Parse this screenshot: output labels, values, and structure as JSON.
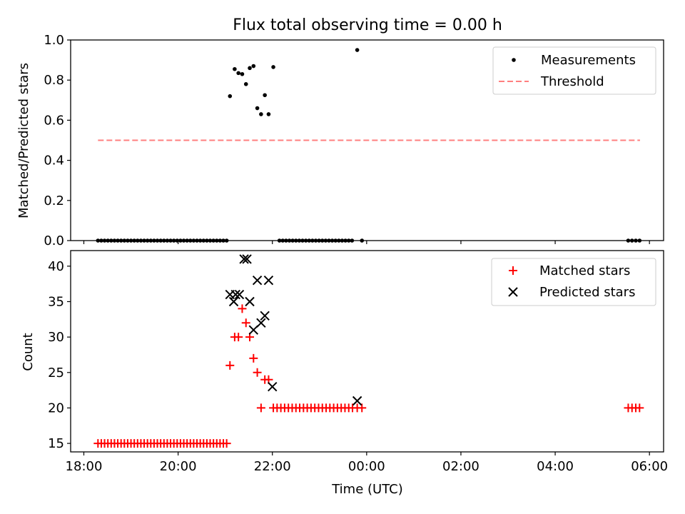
{
  "title": "Flux total observing time = 0.00 h",
  "x_axis": {
    "label": "Time (UTC)",
    "unit": "hours since 18:00 UTC",
    "range": [
      -0.28,
      12.3
    ],
    "ticks": [
      {
        "value": 0,
        "label": "18:00"
      },
      {
        "value": 2,
        "label": "20:00"
      },
      {
        "value": 4,
        "label": "22:00"
      },
      {
        "value": 6,
        "label": "00:00"
      },
      {
        "value": 8,
        "label": "02:00"
      },
      {
        "value": 10,
        "label": "04:00"
      },
      {
        "value": 12,
        "label": "06:00"
      }
    ]
  },
  "chart_data": [
    {
      "type": "scatter",
      "ylabel": "Matched/Predicted stars",
      "ylim": [
        0,
        1.0
      ],
      "yticks": [
        {
          "value": 0,
          "label": "0.0"
        },
        {
          "value": 0.2,
          "label": "0.2"
        },
        {
          "value": 0.4,
          "label": "0.4"
        },
        {
          "value": 0.6,
          "label": "0.6"
        },
        {
          "value": 0.8,
          "label": "0.8"
        },
        {
          "value": 1.0,
          "label": "1.0"
        }
      ],
      "legend_position": "upper right",
      "series": [
        {
          "name": "Measurements",
          "marker": "dot",
          "color": "#000000",
          "points": [
            [
              0.3,
              0
            ],
            [
              0.37,
              0
            ],
            [
              0.44,
              0
            ],
            [
              0.51,
              0
            ],
            [
              0.58,
              0
            ],
            [
              0.65,
              0
            ],
            [
              0.72,
              0
            ],
            [
              0.79,
              0
            ],
            [
              0.86,
              0
            ],
            [
              0.93,
              0
            ],
            [
              1.0,
              0
            ],
            [
              1.07,
              0
            ],
            [
              1.14,
              0
            ],
            [
              1.21,
              0
            ],
            [
              1.28,
              0
            ],
            [
              1.35,
              0
            ],
            [
              1.42,
              0
            ],
            [
              1.49,
              0
            ],
            [
              1.56,
              0
            ],
            [
              1.63,
              0
            ],
            [
              1.7,
              0
            ],
            [
              1.77,
              0
            ],
            [
              1.84,
              0
            ],
            [
              1.91,
              0
            ],
            [
              1.98,
              0
            ],
            [
              2.05,
              0
            ],
            [
              2.12,
              0
            ],
            [
              2.19,
              0
            ],
            [
              2.26,
              0
            ],
            [
              2.33,
              0
            ],
            [
              2.4,
              0
            ],
            [
              2.47,
              0
            ],
            [
              2.54,
              0
            ],
            [
              2.61,
              0
            ],
            [
              2.68,
              0
            ],
            [
              2.75,
              0
            ],
            [
              2.82,
              0
            ],
            [
              2.89,
              0
            ],
            [
              2.96,
              0
            ],
            [
              3.03,
              0
            ],
            [
              3.1,
              0.72
            ],
            [
              3.2,
              0.855
            ],
            [
              3.28,
              0.835
            ],
            [
              3.36,
              0.83
            ],
            [
              3.44,
              0.78
            ],
            [
              3.52,
              0.86
            ],
            [
              3.6,
              0.87
            ],
            [
              3.68,
              0.66
            ],
            [
              3.76,
              0.63
            ],
            [
              3.84,
              0.725
            ],
            [
              3.92,
              0.63
            ],
            [
              4.02,
              0.865
            ],
            [
              4.15,
              0
            ],
            [
              4.22,
              0
            ],
            [
              4.29,
              0
            ],
            [
              4.36,
              0
            ],
            [
              4.43,
              0
            ],
            [
              4.5,
              0
            ],
            [
              4.57,
              0
            ],
            [
              4.64,
              0
            ],
            [
              4.71,
              0
            ],
            [
              4.78,
              0
            ],
            [
              4.85,
              0
            ],
            [
              4.92,
              0
            ],
            [
              4.99,
              0
            ],
            [
              5.06,
              0
            ],
            [
              5.13,
              0
            ],
            [
              5.2,
              0
            ],
            [
              5.27,
              0
            ],
            [
              5.34,
              0
            ],
            [
              5.41,
              0
            ],
            [
              5.48,
              0
            ],
            [
              5.55,
              0
            ],
            [
              5.62,
              0
            ],
            [
              5.69,
              0
            ],
            [
              5.8,
              0.95
            ],
            [
              5.9,
              0
            ],
            [
              11.55,
              0
            ],
            [
              11.63,
              0
            ],
            [
              11.71,
              0
            ],
            [
              11.79,
              0
            ]
          ]
        },
        {
          "name": "Threshold",
          "style": "dashed",
          "color": "#ff7f7f",
          "x": [
            0.3,
            11.8
          ],
          "y": [
            0.5,
            0.5
          ]
        }
      ]
    },
    {
      "type": "scatter",
      "ylabel": "Count",
      "ylim": [
        13.8,
        42.2
      ],
      "yticks": [
        {
          "value": 15,
          "label": "15"
        },
        {
          "value": 20,
          "label": "20"
        },
        {
          "value": 25,
          "label": "25"
        },
        {
          "value": 30,
          "label": "30"
        },
        {
          "value": 35,
          "label": "35"
        },
        {
          "value": 40,
          "label": "40"
        }
      ],
      "legend_position": "upper right",
      "series": [
        {
          "name": "Matched stars",
          "marker": "plus",
          "color": "#ff0000",
          "points": [
            [
              0.3,
              15
            ],
            [
              0.37,
              15
            ],
            [
              0.44,
              15
            ],
            [
              0.51,
              15
            ],
            [
              0.58,
              15
            ],
            [
              0.65,
              15
            ],
            [
              0.72,
              15
            ],
            [
              0.79,
              15
            ],
            [
              0.86,
              15
            ],
            [
              0.93,
              15
            ],
            [
              1.0,
              15
            ],
            [
              1.07,
              15
            ],
            [
              1.14,
              15
            ],
            [
              1.21,
              15
            ],
            [
              1.28,
              15
            ],
            [
              1.35,
              15
            ],
            [
              1.42,
              15
            ],
            [
              1.49,
              15
            ],
            [
              1.56,
              15
            ],
            [
              1.63,
              15
            ],
            [
              1.7,
              15
            ],
            [
              1.77,
              15
            ],
            [
              1.84,
              15
            ],
            [
              1.91,
              15
            ],
            [
              1.98,
              15
            ],
            [
              2.05,
              15
            ],
            [
              2.12,
              15
            ],
            [
              2.19,
              15
            ],
            [
              2.26,
              15
            ],
            [
              2.33,
              15
            ],
            [
              2.4,
              15
            ],
            [
              2.47,
              15
            ],
            [
              2.54,
              15
            ],
            [
              2.61,
              15
            ],
            [
              2.68,
              15
            ],
            [
              2.75,
              15
            ],
            [
              2.82,
              15
            ],
            [
              2.89,
              15
            ],
            [
              2.96,
              15
            ],
            [
              3.03,
              15
            ],
            [
              3.1,
              26
            ],
            [
              3.2,
              30
            ],
            [
              3.28,
              30
            ],
            [
              3.36,
              34
            ],
            [
              3.44,
              32
            ],
            [
              3.52,
              30
            ],
            [
              3.6,
              27
            ],
            [
              3.68,
              25
            ],
            [
              3.76,
              20
            ],
            [
              3.84,
              24
            ],
            [
              3.92,
              24
            ],
            [
              4.02,
              20
            ],
            [
              4.1,
              20
            ],
            [
              4.18,
              20
            ],
            [
              4.26,
              20
            ],
            [
              4.34,
              20
            ],
            [
              4.42,
              20
            ],
            [
              4.5,
              20
            ],
            [
              4.58,
              20
            ],
            [
              4.66,
              20
            ],
            [
              4.74,
              20
            ],
            [
              4.82,
              20
            ],
            [
              4.9,
              20
            ],
            [
              4.98,
              20
            ],
            [
              5.06,
              20
            ],
            [
              5.14,
              20
            ],
            [
              5.22,
              20
            ],
            [
              5.3,
              20
            ],
            [
              5.38,
              20
            ],
            [
              5.46,
              20
            ],
            [
              5.54,
              20
            ],
            [
              5.62,
              20
            ],
            [
              5.7,
              20
            ],
            [
              5.8,
              20
            ],
            [
              5.9,
              20
            ],
            [
              11.55,
              20
            ],
            [
              11.63,
              20
            ],
            [
              11.71,
              20
            ],
            [
              11.79,
              20
            ]
          ]
        },
        {
          "name": "Predicted stars",
          "marker": "x",
          "color": "#000000",
          "points": [
            [
              3.1,
              36
            ],
            [
              3.18,
              35
            ],
            [
              3.22,
              36
            ],
            [
              3.3,
              36
            ],
            [
              3.4,
              41
            ],
            [
              3.46,
              41
            ],
            [
              3.52,
              35
            ],
            [
              3.6,
              31
            ],
            [
              3.68,
              38
            ],
            [
              3.76,
              32
            ],
            [
              3.84,
              33
            ],
            [
              3.92,
              38
            ],
            [
              4.0,
              23
            ],
            [
              5.8,
              21
            ]
          ]
        }
      ]
    }
  ]
}
